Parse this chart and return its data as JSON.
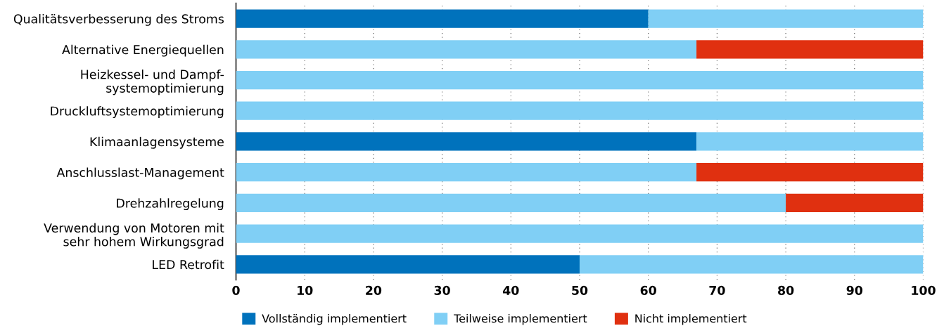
{
  "chart_data": {
    "type": "bar",
    "orientation": "horizontal",
    "stacked": true,
    "categories": [
      "Qualitätsverbesserung des Stroms",
      "Alternative Energiequellen",
      "Heizkessel- und Dampf-\nsystemoptimierung",
      "Druckluftsystemoptimierung",
      "Klimaanlagensysteme",
      "Anschlusslast-Management",
      "Drehzahlregelung",
      "Verwendung von Motoren mit\nsehr hohem Wirkungsgrad",
      "LED Retrofit"
    ],
    "series": [
      {
        "name": "Vollständig implementiert",
        "color": "#0072bc",
        "values": [
          60,
          0,
          0,
          0,
          67,
          0,
          0,
          0,
          50
        ]
      },
      {
        "name": "Teilweise implementiert",
        "color": "#80cff5",
        "values": [
          40,
          67,
          100,
          100,
          33,
          67,
          80,
          100,
          50
        ]
      },
      {
        "name": "Nicht implementiert",
        "color": "#e03010",
        "values": [
          0,
          33,
          0,
          0,
          0,
          33,
          20,
          0,
          0
        ]
      }
    ],
    "xlim": [
      0,
      100
    ],
    "xticks": [
      0,
      10,
      20,
      30,
      40,
      50,
      60,
      70,
      80,
      90,
      100
    ],
    "grid": "x",
    "legend": "bottom"
  }
}
